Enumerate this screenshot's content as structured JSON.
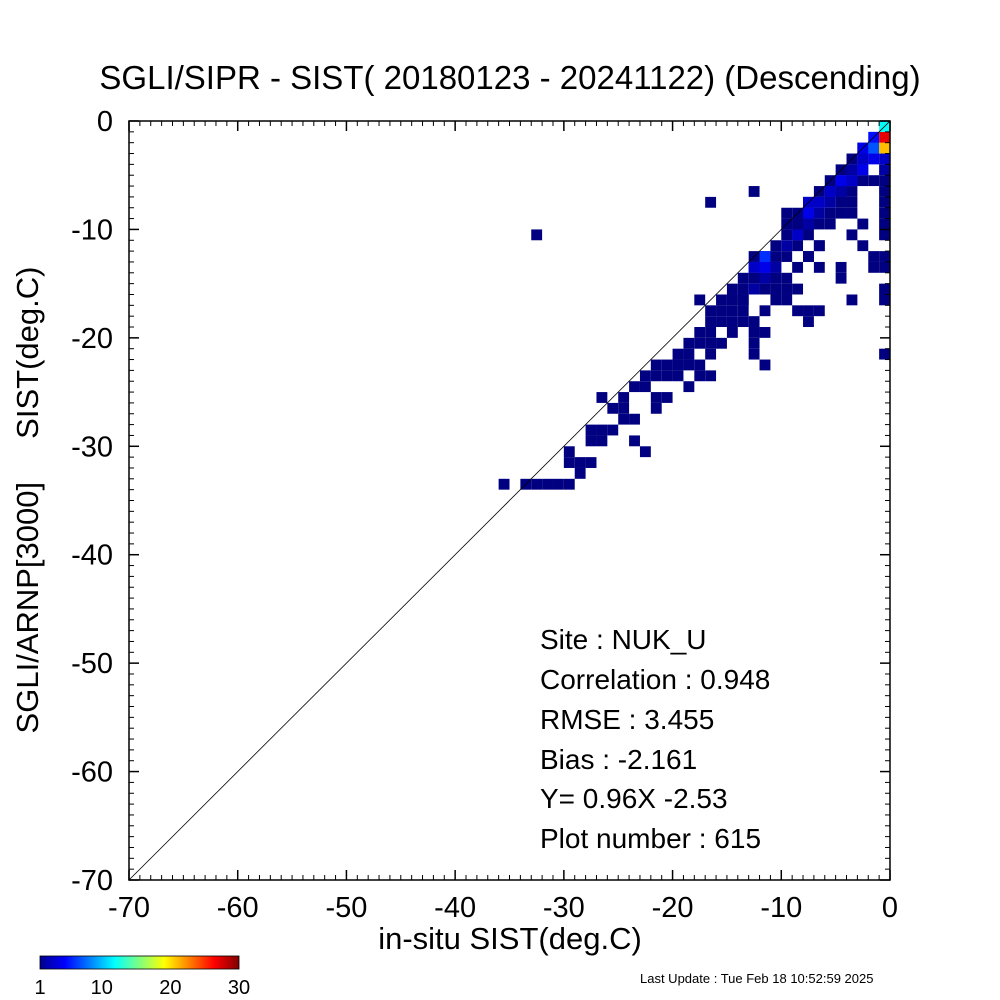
{
  "chart_data": {
    "type": "heatmap",
    "title": "SGLI/SIPR - SIST( 20180123 - 20241122) (Descending)",
    "xlabel": "in-situ SIST(deg.C)",
    "ylabel": "SGLI/ARNP[3000]     SIST(deg.C)",
    "xlim": [
      -70,
      0
    ],
    "ylim": [
      -70,
      0
    ],
    "xticks": [
      "-70",
      "-60",
      "-50",
      "-40",
      "-30",
      "-20",
      "-10",
      "0"
    ],
    "yticks": [
      "0",
      "-10",
      "-20",
      "-30",
      "-40",
      "-50",
      "-60",
      "-70"
    ],
    "reference_line": "1:1",
    "cell_size_deg": 1,
    "count_colorbar": {
      "range": [
        1,
        30
      ],
      "ticks": [
        "1",
        "10",
        "20",
        "30"
      ],
      "colormap": "jet"
    },
    "cells": [
      [
        -35.5,
        -33.5,
        1
      ],
      [
        -33.5,
        -33.5,
        1
      ],
      [
        -32.5,
        -33.5,
        1
      ],
      [
        -31.5,
        -33.5,
        1
      ],
      [
        -30.5,
        -33.5,
        1
      ],
      [
        -29.5,
        -33.5,
        1
      ],
      [
        -32.5,
        -10.5,
        1
      ],
      [
        -29.5,
        -31.5,
        1
      ],
      [
        -28.5,
        -31.5,
        1
      ],
      [
        -28.5,
        -32.5,
        1
      ],
      [
        -29.5,
        -30.5,
        1
      ],
      [
        -27.5,
        -28.5,
        1
      ],
      [
        -26.5,
        -28.5,
        1
      ],
      [
        -26.5,
        -29.5,
        1
      ],
      [
        -27.5,
        -29.5,
        1
      ],
      [
        -25.5,
        -28.5,
        1
      ],
      [
        -27.5,
        -31.5,
        1
      ],
      [
        -26.5,
        -25.5,
        1
      ],
      [
        -25.5,
        -26.5,
        1
      ],
      [
        -24.5,
        -26.5,
        1
      ],
      [
        -24.5,
        -25.5,
        1
      ],
      [
        -23.5,
        -24.5,
        1
      ],
      [
        -22.5,
        -24.5,
        1
      ],
      [
        -23.5,
        -27.5,
        1
      ],
      [
        -24.5,
        -27.5,
        1
      ],
      [
        -23.5,
        -29.5,
        1
      ],
      [
        -22.5,
        -30.5,
        1
      ],
      [
        -21.5,
        -26.5,
        1
      ],
      [
        -20.5,
        -25.5,
        1
      ],
      [
        -22.5,
        -23.5,
        1
      ],
      [
        -21.5,
        -23.5,
        1
      ],
      [
        -21.5,
        -22.5,
        1
      ],
      [
        -20.5,
        -22.5,
        1
      ],
      [
        -20.5,
        -23.5,
        1
      ],
      [
        -19.5,
        -21.5,
        1
      ],
      [
        -19.5,
        -22.5,
        1
      ],
      [
        -18.5,
        -21.5,
        1
      ],
      [
        -18.5,
        -20.5,
        1
      ],
      [
        -17.5,
        -20.5,
        1
      ],
      [
        -17.5,
        -19.5,
        1
      ],
      [
        -16.5,
        -19.5,
        1
      ],
      [
        -16.5,
        -18.5,
        1
      ],
      [
        -15.5,
        -18.5,
        1
      ],
      [
        -15.5,
        -17.5,
        1
      ],
      [
        -14.5,
        -17.5,
        1
      ],
      [
        -14.5,
        -16.5,
        1
      ],
      [
        -13.5,
        -16.5,
        1
      ],
      [
        -13.5,
        -15.5,
        1
      ],
      [
        -12.5,
        -14.5,
        1
      ],
      [
        -12.5,
        -13.5,
        1
      ],
      [
        -11.5,
        -13.5,
        1
      ],
      [
        -11.5,
        -12.5,
        1
      ],
      [
        -10.5,
        -12.5,
        1
      ],
      [
        -10.5,
        -11.5,
        1
      ],
      [
        -9.5,
        -10.5,
        1
      ],
      [
        -9.5,
        -9.5,
        1
      ],
      [
        -8.5,
        -9.5,
        1
      ],
      [
        -8.5,
        -8.5,
        1
      ],
      [
        -7.5,
        -8.5,
        1
      ],
      [
        -7.5,
        -7.5,
        1
      ],
      [
        -6.5,
        -6.5,
        1
      ],
      [
        -6.5,
        -7.5,
        1
      ],
      [
        -5.5,
        -5.5,
        1
      ],
      [
        -5.5,
        -6.5,
        1
      ],
      [
        -4.5,
        -4.5,
        1
      ],
      [
        -4.5,
        -5.5,
        1
      ],
      [
        -3.5,
        -3.5,
        1
      ],
      [
        -3.5,
        -4.5,
        1
      ],
      [
        -2.5,
        -3.5,
        1
      ],
      [
        -2.5,
        -2.5,
        1
      ],
      [
        -1.5,
        -2.5,
        1
      ],
      [
        -17.5,
        -22.5,
        1
      ],
      [
        -16.5,
        -21.5,
        1
      ],
      [
        -15.5,
        -20.5,
        1
      ],
      [
        -14.5,
        -19.5,
        1
      ],
      [
        -16.5,
        -23.5,
        1
      ],
      [
        -18.5,
        -24.5,
        1
      ],
      [
        -17.5,
        -16.5,
        1
      ],
      [
        -16.5,
        -17.5,
        1
      ],
      [
        -15.5,
        -16.5,
        1
      ],
      [
        -14.5,
        -15.5,
        1
      ],
      [
        -13.5,
        -14.5,
        1
      ],
      [
        -12.5,
        -12.5,
        1
      ],
      [
        -13.5,
        -17.5,
        1
      ],
      [
        -12.5,
        -18.5,
        1
      ],
      [
        -12.5,
        -20.5,
        1
      ],
      [
        -12.5,
        -21.5,
        1
      ],
      [
        -13.5,
        -18.5,
        1
      ],
      [
        -11.5,
        -19.5,
        1
      ],
      [
        -11.5,
        -17.5,
        1
      ],
      [
        -10.5,
        -15.5,
        1
      ],
      [
        -9.5,
        -14.5,
        1
      ],
      [
        -10.5,
        -14.5,
        1
      ],
      [
        -11.5,
        -15.5,
        1
      ],
      [
        -10.5,
        -16.5,
        1
      ],
      [
        -9.5,
        -16.5,
        1
      ],
      [
        -8.5,
        -13.5,
        1
      ],
      [
        -7.5,
        -12.5,
        1
      ],
      [
        -6.5,
        -11.5,
        1
      ],
      [
        -7.5,
        -10.5,
        1
      ],
      [
        -6.5,
        -9.5,
        1
      ],
      [
        -11.5,
        -14.5,
        1
      ],
      [
        -10.5,
        -13.5,
        1
      ],
      [
        -9.5,
        -12.5,
        1
      ],
      [
        -8.5,
        -11.5,
        1
      ],
      [
        -7.5,
        -9.5,
        1
      ],
      [
        -5.5,
        -8.5,
        1
      ],
      [
        -4.5,
        -7.5,
        1
      ],
      [
        -4.5,
        -6.5,
        1
      ],
      [
        -3.5,
        -6.5,
        1
      ],
      [
        -3.5,
        -5.5,
        1
      ],
      [
        -2.5,
        -5.5,
        1
      ],
      [
        -2.5,
        -4.5,
        1
      ],
      [
        -10.5,
        -13.5,
        2
      ],
      [
        -11.5,
        -14.5,
        2
      ],
      [
        -12.5,
        -15.5,
        2
      ],
      [
        -9.5,
        -11.5,
        2
      ],
      [
        -8.5,
        -10.5,
        2
      ],
      [
        -7.5,
        -9.5,
        2
      ],
      [
        -6.5,
        -8.5,
        2
      ],
      [
        -5.5,
        -7.5,
        2
      ],
      [
        -4.5,
        -6.5,
        2
      ],
      [
        -3.5,
        -4.5,
        2
      ],
      [
        -11.5,
        -13.5,
        4
      ],
      [
        -8.5,
        -10.5,
        3
      ],
      [
        -7.5,
        -8.5,
        4
      ],
      [
        -5.5,
        -6.5,
        3
      ],
      [
        -4.5,
        -5.5,
        4
      ],
      [
        -3.5,
        -5.5,
        3
      ],
      [
        -2.5,
        -4.5,
        4
      ],
      [
        -1.5,
        -3.5,
        4
      ],
      [
        -2.5,
        -3.5,
        3
      ],
      [
        -0.5,
        -3.5,
        3
      ],
      [
        -0.5,
        -4.5,
        2
      ],
      [
        -0.5,
        -5.5,
        1
      ],
      [
        -11.5,
        -12.5,
        6
      ],
      [
        -12.5,
        -13.5,
        3
      ],
      [
        -7.5,
        -7.5,
        3
      ],
      [
        -6.5,
        -7.5,
        3
      ],
      [
        -1.5,
        -2.5,
        7
      ],
      [
        -1.5,
        -1.5,
        5
      ],
      [
        -2.5,
        -2.5,
        4
      ],
      [
        -0.5,
        -2.5,
        21
      ],
      [
        -0.5,
        -1.5,
        27
      ],
      [
        -0.5,
        -0.5,
        12
      ],
      [
        -13.5,
        -16.5,
        1
      ],
      [
        -9.5,
        -8.5,
        1
      ],
      [
        -8.5,
        -9.5,
        1
      ],
      [
        -12.5,
        -6.5,
        1
      ],
      [
        -16.5,
        -7.5,
        1
      ],
      [
        -5.5,
        -9.5,
        1
      ],
      [
        -4.5,
        -8.5,
        1
      ],
      [
        -3.5,
        -7.5,
        1
      ],
      [
        -3.5,
        -8.5,
        1
      ],
      [
        -2.5,
        -11.5,
        1
      ],
      [
        -3.5,
        -10.5,
        1
      ],
      [
        -6.5,
        -11.5,
        1
      ],
      [
        -7.5,
        -12.5,
        1
      ],
      [
        -9.5,
        -15.5,
        1
      ],
      [
        -8.5,
        -15.5,
        1
      ],
      [
        -6.5,
        -13.5,
        1
      ],
      [
        -4.5,
        -14.5,
        1
      ],
      [
        -4.5,
        -13.5,
        1
      ],
      [
        -3.5,
        -16.5,
        1
      ],
      [
        -0.5,
        -6.5,
        1
      ],
      [
        -0.5,
        -7.5,
        1
      ],
      [
        -0.5,
        -8.5,
        1
      ],
      [
        -0.5,
        -9.5,
        1
      ],
      [
        -0.5,
        -10.5,
        1
      ],
      [
        -0.5,
        -12.5,
        1
      ],
      [
        -0.5,
        -13.5,
        1
      ],
      [
        -0.5,
        -15.5,
        1
      ],
      [
        -0.5,
        -16.5,
        1
      ],
      [
        -0.5,
        -21.5,
        1
      ],
      [
        -1.5,
        -12.5,
        1
      ],
      [
        -1.5,
        -13.5,
        1
      ],
      [
        -2.5,
        -9.5,
        1
      ],
      [
        -1.5,
        -5.5,
        1
      ],
      [
        -12.5,
        -19.5,
        1
      ],
      [
        -8.5,
        -17.5,
        1
      ],
      [
        -7.5,
        -17.5,
        1
      ],
      [
        -7.5,
        -18.5,
        1
      ],
      [
        -6.5,
        -17.5,
        1
      ],
      [
        -11.5,
        -22.5,
        1
      ],
      [
        -14.5,
        -18.5,
        1
      ],
      [
        -16.5,
        -20.5,
        1
      ],
      [
        -17.5,
        -23.5,
        1
      ],
      [
        -18.5,
        -22.5,
        1
      ],
      [
        -19.5,
        -23.5,
        1
      ],
      [
        -21.5,
        -25.5,
        1
      ]
    ],
    "annotations": {
      "site": "Site : NUK_U",
      "correlation": "Correlation :    0.948",
      "rmse": "RMSE :    3.455",
      "bias": "Bias :   -2.161",
      "regression": "Y=   0.96X  -2.53",
      "plot_number": "Plot number :       615"
    }
  },
  "footer": {
    "last_update": "Last Update : Tue Feb 18 10:52:59 2025"
  }
}
